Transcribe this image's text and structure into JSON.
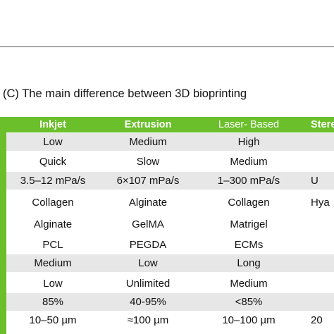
{
  "caption": "(C) The main difference between 3D bioprinting",
  "headers": [
    "Inkjet",
    "Extrusion",
    "Laser- Based",
    "Stere"
  ],
  "rows": [
    [
      "Low",
      "Medium",
      "High",
      ""
    ],
    [
      "Quick",
      "Slow",
      "Medium",
      ""
    ],
    [
      "3.5–12 mPa/s",
      "6×107 mPa/s",
      "1–300 mPa/s",
      "U"
    ],
    [
      "Collagen",
      "Alginate",
      "Collagen",
      "Hya"
    ],
    [
      "Alginate",
      "GelMA",
      "Matrigel",
      ""
    ],
    [
      "PCL",
      "PEGDA",
      "ECMs",
      ""
    ],
    [
      "Medium",
      "Low",
      "Long",
      ""
    ],
    [
      "Low",
      "Unlimited",
      "Medium",
      ""
    ],
    [
      "85%",
      "40-95%",
      "<85%",
      ""
    ],
    [
      "10–50 µm",
      "≈100 µm",
      "10–100 µm",
      "20"
    ]
  ],
  "colors": {
    "header_green": "#6abf2a",
    "row_shade": "#e7e7e7",
    "header_text": "#ffffff"
  }
}
